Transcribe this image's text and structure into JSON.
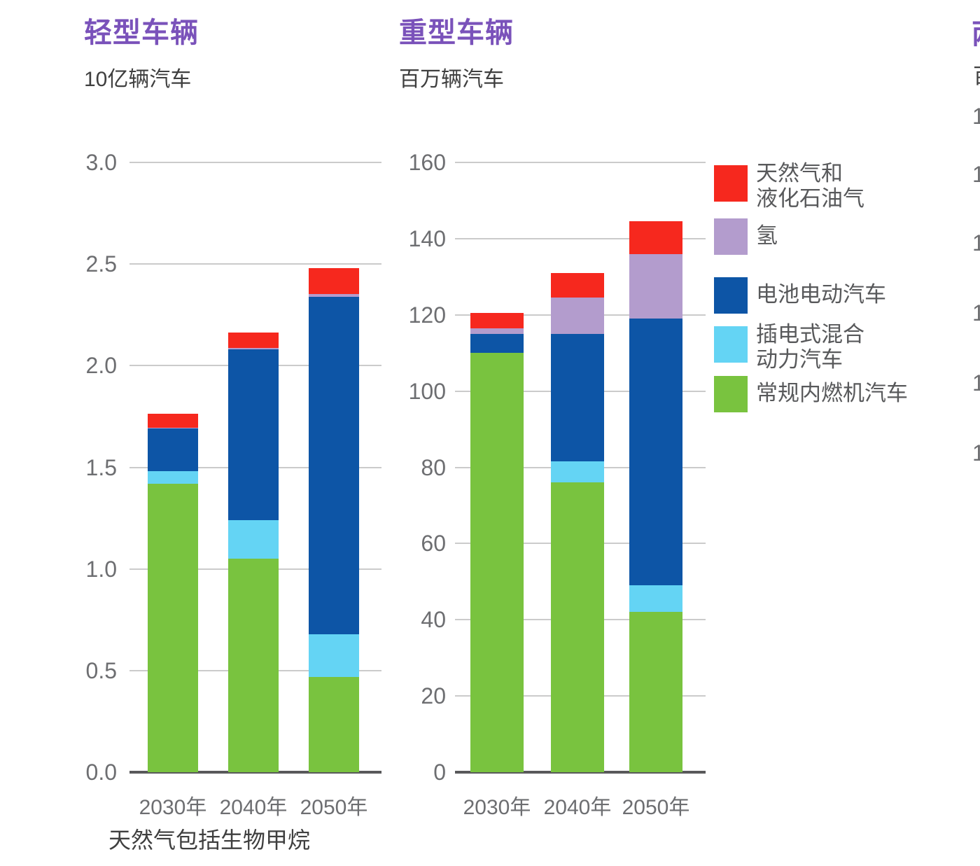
{
  "colors": {
    "gas": "#f6281e",
    "h2": "#b39ccd",
    "bev": "#0d55a6",
    "phev": "#64d4f4",
    "ice": "#79c33f",
    "title_purple": "#7a52ba",
    "gridline": "#cbcbcb",
    "axis": "#59595b",
    "tick_text": "#6d6e71"
  },
  "chart_data": [
    {
      "type": "bar",
      "stacked": true,
      "title": "轻型车辆",
      "unit_label": "10亿辆汽车",
      "categories": [
        "2030年",
        "2040年",
        "2050年"
      ],
      "ylim": [
        0,
        3.0
      ],
      "ytick_values": [
        3.0,
        2.5,
        2.0,
        1.5,
        1.0,
        0.5,
        0
      ],
      "ytick_labels": [
        "3.0",
        "2.5",
        "2.0",
        "1.5",
        "1.0",
        "0.5",
        "0.0"
      ],
      "grid": true,
      "series": [
        {
          "name": "常规内燃机汽车",
          "color_key": "ice",
          "values": [
            1.42,
            1.05,
            0.47
          ]
        },
        {
          "name": "插电式混合动力汽车",
          "color_key": "phev",
          "values": [
            0.06,
            0.19,
            0.21
          ]
        },
        {
          "name": "电池电动汽车",
          "color_key": "bev",
          "values": [
            0.21,
            0.84,
            1.66
          ]
        },
        {
          "name": "氢",
          "color_key": "h2",
          "values": [
            0.005,
            0.007,
            0.012
          ]
        },
        {
          "name": "天然气和液化石油气",
          "color_key": "gas",
          "values": [
            0.07,
            0.075,
            0.128
          ]
        }
      ]
    },
    {
      "type": "bar",
      "stacked": true,
      "title": "重型车辆",
      "unit_label": "百万辆汽车",
      "categories": [
        "2030年",
        "2040年",
        "2050年"
      ],
      "ylim": [
        0,
        160
      ],
      "ytick_values": [
        160,
        140,
        120,
        100,
        80,
        60,
        40,
        20,
        0
      ],
      "ytick_labels": [
        "160",
        "140",
        "120",
        "100",
        "80",
        "60",
        "40",
        "20",
        "0"
      ],
      "grid": true,
      "series": [
        {
          "name": "常规内燃机汽车",
          "color_key": "ice",
          "values": [
            110,
            76,
            42
          ]
        },
        {
          "name": "插电式混合动力汽车",
          "color_key": "phev",
          "values": [
            0,
            5.5,
            7
          ]
        },
        {
          "name": "电池电动汽车",
          "color_key": "bev",
          "values": [
            5,
            33.5,
            70
          ]
        },
        {
          "name": "氢",
          "color_key": "h2",
          "values": [
            1.5,
            9.5,
            17
          ]
        },
        {
          "name": "天然气和液化石油气",
          "color_key": "gas",
          "values": [
            4,
            6.5,
            8.5
          ]
        }
      ]
    }
  ],
  "legend": {
    "position": "right",
    "items": [
      {
        "key": "gas",
        "lines": [
          "天然气和",
          "液化石油气"
        ]
      },
      {
        "key": "h2",
        "lines": [
          "氢"
        ]
      },
      {
        "key": "bev",
        "lines": [
          "电池电动汽车"
        ]
      },
      {
        "key": "phev",
        "lines": [
          "插电式混合",
          "动力汽车"
        ]
      },
      {
        "key": "ice",
        "lines": [
          "常规内燃机汽车"
        ]
      }
    ]
  },
  "footnote": "天然气包括生物甲烷",
  "clipped_panel": {
    "title_fragment": "两",
    "subtitle_fragment": "百",
    "tick_fragments": [
      "1",
      "1",
      "1",
      "1",
      "1",
      "1"
    ]
  }
}
